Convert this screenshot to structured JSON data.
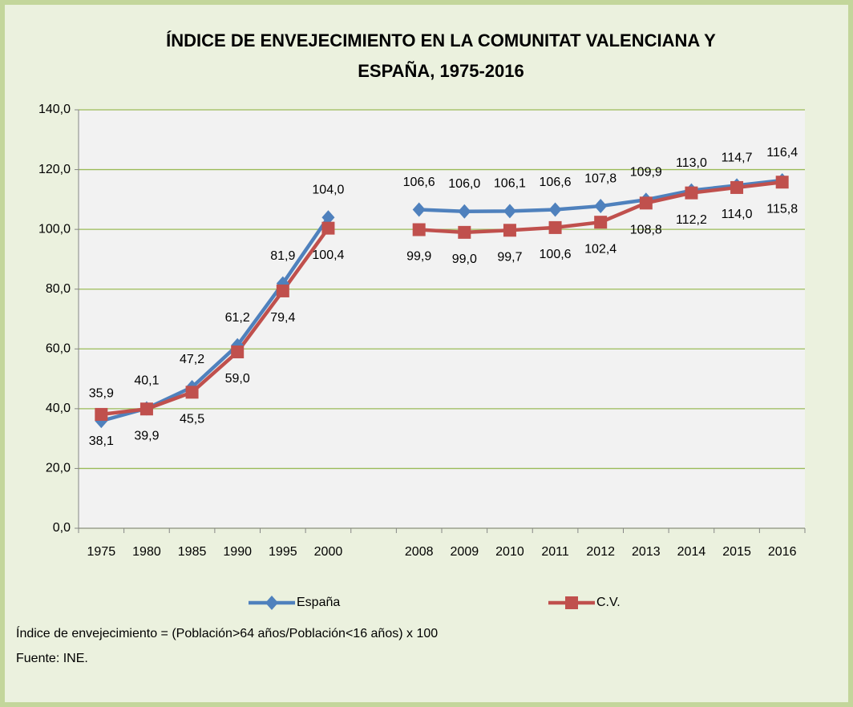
{
  "chart_data": {
    "type": "line",
    "title": [
      "ÍNDICE DE ENVEJECIMIENTO EN LA COMUNITAT VALENCIANA Y",
      "ESPAÑA, 1975-2016"
    ],
    "categories": [
      "1975",
      "1980",
      "1985",
      "1990",
      "1995",
      "2000",
      null,
      "2008",
      "2009",
      "2010",
      "2011",
      "2012",
      "2013",
      "2014",
      "2015",
      "2016"
    ],
    "series": [
      {
        "name": "España",
        "color": "#4f81bd",
        "values": [
          35.9,
          40.1,
          47.2,
          61.2,
          81.9,
          104.0,
          null,
          106.6,
          106.0,
          106.1,
          106.6,
          107.8,
          109.9,
          113.0,
          114.7,
          116.4
        ],
        "value_labels": [
          "35,9",
          "40,1",
          "47,2",
          "61,2",
          "81,9",
          "104,0",
          null,
          "106,6",
          "106,0",
          "106,1",
          "106,6",
          "107,8",
          "109,9",
          "113,0",
          "114,7",
          "116,4"
        ]
      },
      {
        "name": "C.V.",
        "color": "#c0504d",
        "values": [
          38.1,
          39.9,
          45.5,
          59.0,
          79.4,
          100.4,
          null,
          99.9,
          99.0,
          99.7,
          100.6,
          102.4,
          108.8,
          112.2,
          114.0,
          115.8
        ],
        "value_labels": [
          "38,1",
          "39,9",
          "45,5",
          "59,0",
          "79,4",
          "100,4",
          null,
          "99,9",
          "99,0",
          "99,7",
          "100,6",
          "102,4",
          "108,8",
          "112,2",
          "114,0",
          "115,8"
        ]
      }
    ],
    "ylim": [
      0,
      140
    ],
    "yticks": [
      {
        "value": 0,
        "label": "0,0"
      },
      {
        "value": 20,
        "label": "20,0"
      },
      {
        "value": 40,
        "label": "40,0"
      },
      {
        "value": 60,
        "label": "60,0"
      },
      {
        "value": 80,
        "label": "80,0"
      },
      {
        "value": 100,
        "label": "100,0"
      },
      {
        "value": 120,
        "label": "120,0"
      },
      {
        "value": 140,
        "label": "140,0"
      }
    ],
    "grid": true,
    "legend": "bottom",
    "notes": [
      "Índice de envejecimiento = (Población>64 años/Población<16 años) x 100",
      "Fuente: INE."
    ]
  }
}
